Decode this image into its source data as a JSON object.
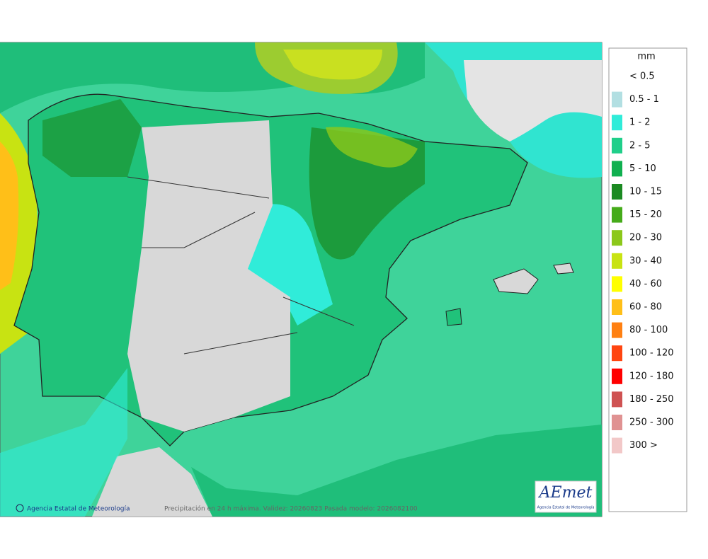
{
  "legend": {
    "title": "mm",
    "items": [
      {
        "label": "< 0.5",
        "color": "#ffffff"
      },
      {
        "label": "0.5 - 1",
        "color": "#b2dfe2"
      },
      {
        "label": "1 - 2",
        "color": "#30ecd9"
      },
      {
        "label": "2 - 5",
        "color": "#20cf8a"
      },
      {
        "label": "5 - 10",
        "color": "#10b050"
      },
      {
        "label": "10 - 15",
        "color": "#1b8a22"
      },
      {
        "label": "15 - 20",
        "color": "#45ab1a"
      },
      {
        "label": "20 - 30",
        "color": "#8cc81a"
      },
      {
        "label": "30 - 40",
        "color": "#c8e312"
      },
      {
        "label": "40 - 60",
        "color": "#ffff00"
      },
      {
        "label": "60 - 80",
        "color": "#ffbf18"
      },
      {
        "label": "80 - 100",
        "color": "#ff8012"
      },
      {
        "label": "100 - 120",
        "color": "#ff4510"
      },
      {
        "label": "120 - 180",
        "color": "#ff0000"
      },
      {
        "label": "180 - 250",
        "color": "#cf5252"
      },
      {
        "label": "250 - 300",
        "color": "#e09292"
      },
      {
        "label": "300 >",
        "color": "#f2c8c8"
      }
    ]
  },
  "footer": {
    "credit": "Agencia Estatal de Meteorología",
    "caption": "Precipitación en 24 h máxima. Validez: 20260823 Pasada modelo: 2026082100"
  },
  "logo": {
    "name": "AEmet",
    "subtitle": "Agencia Estatal de Meteorología"
  }
}
